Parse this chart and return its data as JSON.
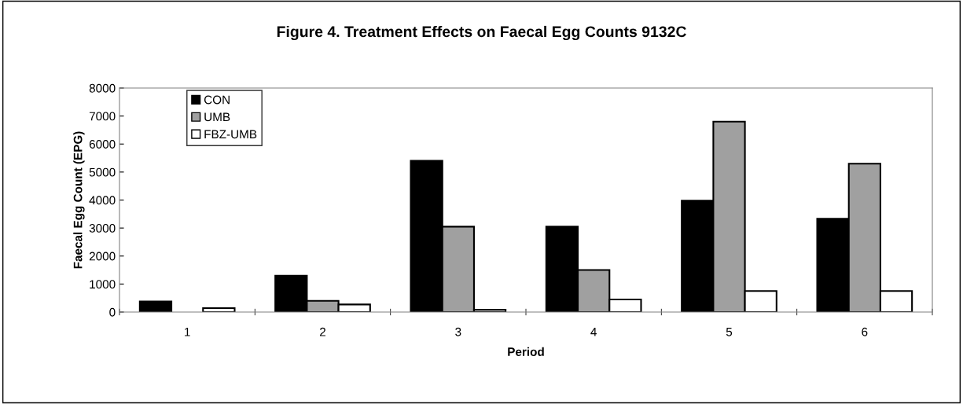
{
  "chart_data": {
    "type": "bar",
    "title": "Figure 4. Treatment Effects on Faecal Egg Counts 9132C",
    "xlabel": "Period",
    "ylabel": "Faecal Egg Count (EPG)",
    "categories": [
      "1",
      "2",
      "3",
      "4",
      "5",
      "6"
    ],
    "series": [
      {
        "name": "CON",
        "color": "#000000",
        "values": [
          380,
          1300,
          5400,
          3050,
          3980,
          3330
        ]
      },
      {
        "name": "UMB",
        "color": "#a0a0a0",
        "values": [
          null,
          400,
          3050,
          1500,
          6800,
          5300
        ]
      },
      {
        "name": "FBZ-UMB",
        "color": "#ffffff",
        "values": [
          140,
          270,
          80,
          450,
          750,
          750
        ]
      }
    ],
    "ylim": [
      0,
      8000
    ],
    "yticks": [
      0,
      1000,
      2000,
      3000,
      4000,
      5000,
      6000,
      7000,
      8000
    ],
    "grid": false,
    "legend": "top left"
  }
}
